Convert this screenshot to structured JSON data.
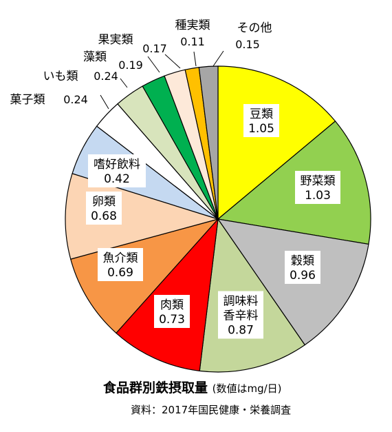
{
  "chart_data": {
    "type": "pie",
    "title": "食品群別鉄摂取量",
    "unit": "(数値はmg/日)",
    "source": "資料：2017年国民健康・栄養調査",
    "slices": [
      {
        "label": "豆類",
        "value": 1.05,
        "color": "#ffff00"
      },
      {
        "label": "野菜類",
        "value": 1.03,
        "color": "#92d050"
      },
      {
        "label": "穀類",
        "value": 0.96,
        "color": "#bfbfbf"
      },
      {
        "label": "調味料香辛料",
        "label_lines": [
          "調味料",
          "香辛料"
        ],
        "value": 0.87,
        "color": "#c4d79b"
      },
      {
        "label": "肉類",
        "value": 0.73,
        "color": "#ff0000"
      },
      {
        "label": "魚介類",
        "value": 0.69,
        "color": "#f79646"
      },
      {
        "label": "卵類",
        "value": 0.68,
        "color": "#fcd5b4"
      },
      {
        "label": "嗜好飲料",
        "value": 0.42,
        "color": "#c5d9f1"
      },
      {
        "label": "菓子類",
        "value": 0.24,
        "color": "#ffffff"
      },
      {
        "label": "いも類",
        "value": 0.24,
        "color": "#d8e4bc"
      },
      {
        "label": "藻類",
        "value": 0.19,
        "color": "#00b050"
      },
      {
        "label": "果実類",
        "value": 0.17,
        "color": "#fde9d9"
      },
      {
        "label": "種実類",
        "value": 0.11,
        "color": "#ffc000"
      },
      {
        "label": "その他",
        "value": 0.15,
        "color": "#a6a6a6"
      }
    ]
  }
}
